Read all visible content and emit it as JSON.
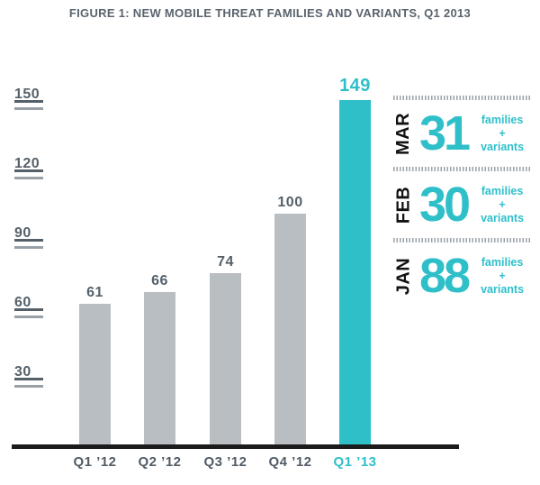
{
  "title": "FIGURE 1: NEW MOBILE THREAT FAMILIES AND VARIANTS, Q1 2013",
  "colors": {
    "teal": "#2fbfc9",
    "bar_gray": "#b9bec3",
    "label_gray": "#556069",
    "xlabel_gray": "#515c66",
    "tick_line_light": "#99a1a8",
    "axis_black": "#1b1b1b",
    "month_black": "#121212"
  },
  "chart_data": {
    "type": "bar",
    "title": "FIGURE 1: NEW MOBILE THREAT FAMILIES AND VARIANTS, Q1 2013",
    "categories": [
      "Q1 ’12",
      "Q2 ’12",
      "Q3 ’12",
      "Q4 ’12",
      "Q1 ’13"
    ],
    "values": [
      61,
      66,
      74,
      100,
      149
    ],
    "highlight_index": 4,
    "highlight_color": "#2fbfc9",
    "bar_color": "#b9bec3",
    "yticks": [
      30,
      60,
      90,
      120,
      150
    ],
    "ylim": [
      0,
      155
    ],
    "grid": false,
    "legend": false,
    "xlabel": "",
    "ylabel": ""
  },
  "side_panel": {
    "rows": [
      {
        "month": "MAR",
        "value": "31",
        "unit": [
          "families",
          "+",
          "variants"
        ]
      },
      {
        "month": "FEB",
        "value": "30",
        "unit": [
          "families",
          "+",
          "variants"
        ]
      },
      {
        "month": "JAN",
        "value": "88",
        "unit": [
          "families",
          "+",
          "variants"
        ]
      }
    ]
  }
}
